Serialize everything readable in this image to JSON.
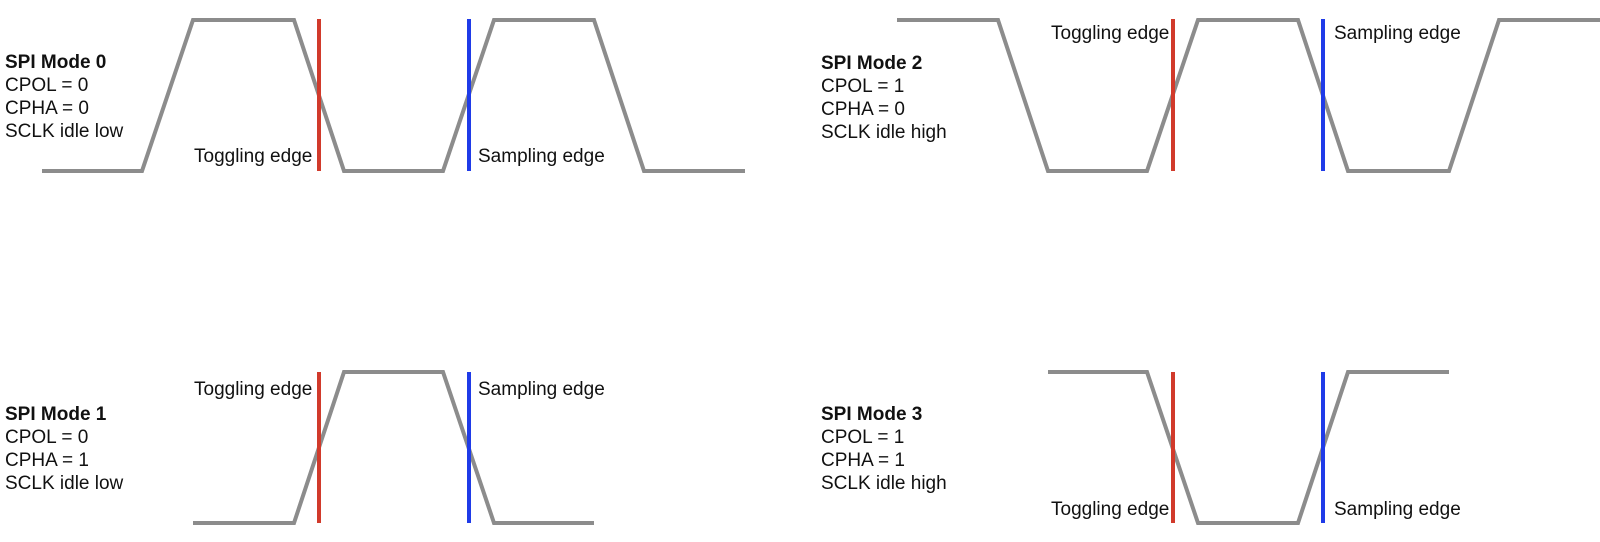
{
  "colors": {
    "waveform": "#8c8c8c",
    "toggling_edge": "#d13a2b",
    "sampling_edge": "#1f3be8",
    "text": "#111111"
  },
  "modes": [
    {
      "title": "SPI Mode 0",
      "cpol": "CPOL = 0",
      "cpha": "CPHA = 0",
      "idle": "SCLK idle low",
      "toggling_label": "Toggling edge",
      "sampling_label": "Sampling edge"
    },
    {
      "title": "SPI Mode 1",
      "cpol": "CPOL = 0",
      "cpha": "CPHA = 1",
      "idle": "SCLK idle low",
      "toggling_label": "Toggling edge",
      "sampling_label": "Sampling edge"
    },
    {
      "title": "SPI Mode 2",
      "cpol": "CPOL = 1",
      "cpha": "CPHA = 0",
      "idle": "SCLK idle high",
      "toggling_label": "Toggling edge",
      "sampling_label": "Sampling edge"
    },
    {
      "title": "SPI Mode 3",
      "cpol": "CPOL = 1",
      "cpha": "CPHA = 1",
      "idle": "SCLK idle high",
      "toggling_label": "Toggling edge",
      "sampling_label": "Sampling edge"
    }
  ]
}
